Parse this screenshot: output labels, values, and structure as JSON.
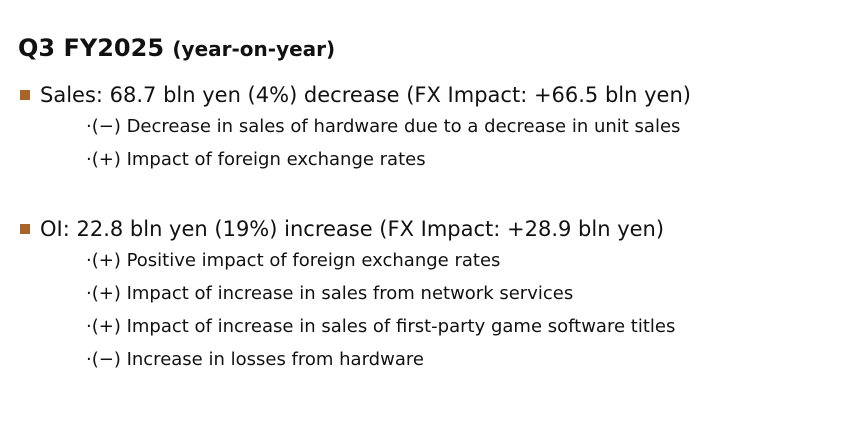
{
  "header": {
    "title": "Q3 FY2025",
    "subtitle": "(year-on-year)"
  },
  "sections": [
    {
      "heading": "Sales: 68.7 bln yen (4%) decrease (FX Impact: +66.5 bln yen)",
      "items": [
        "·(−) Decrease in sales of hardware due to a decrease in unit sales",
        "·(+) Impact of foreign exchange rates"
      ]
    },
    {
      "heading": "OI: 22.8 bln yen (19%) increase (FX Impact: +28.9 bln yen)",
      "items": [
        "·(+) Positive impact of foreign exchange rates",
        "·(+) Impact of increase in sales from network services",
        "·(+) Impact of increase in sales of first-party game software titles",
        "·(−) Increase in losses from hardware"
      ]
    }
  ]
}
